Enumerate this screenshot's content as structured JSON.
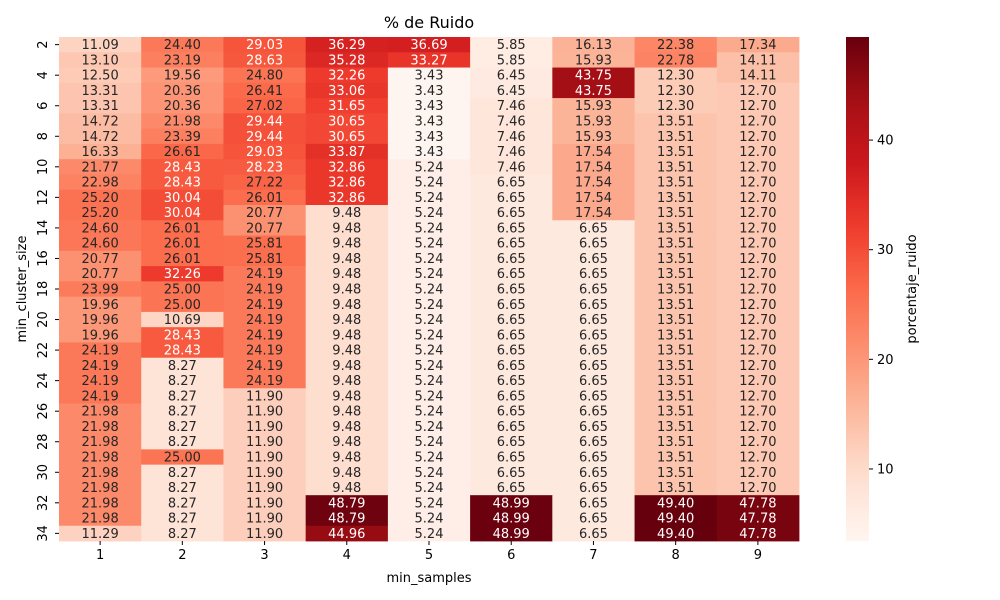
{
  "chart_data": {
    "type": "heatmap",
    "title": "% de Ruido",
    "xlabel": "min_samples",
    "ylabel": "min_cluster_size",
    "colorbar_label": "porcentaje_ruido",
    "colormap": "Reds",
    "color_range": [
      3.43,
      49.4
    ],
    "colorbar_ticks": [
      10,
      20,
      30,
      40
    ],
    "x": [
      1,
      2,
      3,
      4,
      5,
      6,
      7,
      8,
      9
    ],
    "y": [
      2,
      3,
      4,
      5,
      6,
      7,
      8,
      9,
      10,
      11,
      12,
      13,
      14,
      15,
      16,
      17,
      18,
      19,
      20,
      21,
      22,
      23,
      24,
      25,
      26,
      27,
      28,
      29,
      30,
      31,
      32,
      33,
      34
    ],
    "y_tick_labels": [
      2,
      4,
      6,
      8,
      10,
      12,
      14,
      16,
      18,
      20,
      22,
      24,
      26,
      28,
      30,
      32,
      34
    ],
    "values": [
      [
        11.09,
        24.4,
        29.03,
        36.29,
        36.69,
        5.85,
        16.13,
        22.38,
        17.34
      ],
      [
        13.1,
        23.19,
        28.63,
        35.28,
        33.27,
        5.85,
        15.93,
        22.78,
        14.11
      ],
      [
        12.5,
        19.56,
        24.8,
        32.26,
        3.43,
        6.45,
        43.75,
        12.3,
        14.11
      ],
      [
        13.31,
        20.36,
        26.41,
        33.06,
        3.43,
        6.45,
        43.75,
        12.3,
        12.7
      ],
      [
        13.31,
        20.36,
        27.02,
        31.65,
        3.43,
        7.46,
        15.93,
        12.3,
        12.7
      ],
      [
        14.72,
        21.98,
        29.44,
        30.65,
        3.43,
        7.46,
        15.93,
        13.51,
        12.7
      ],
      [
        14.72,
        23.39,
        29.44,
        30.65,
        3.43,
        7.46,
        15.93,
        13.51,
        12.7
      ],
      [
        16.33,
        26.61,
        29.03,
        33.87,
        3.43,
        7.46,
        17.54,
        13.51,
        12.7
      ],
      [
        21.77,
        28.43,
        28.23,
        32.86,
        5.24,
        7.46,
        17.54,
        13.51,
        12.7
      ],
      [
        22.98,
        28.43,
        27.22,
        32.86,
        5.24,
        6.65,
        17.54,
        13.51,
        12.7
      ],
      [
        25.2,
        30.04,
        26.01,
        32.86,
        5.24,
        6.65,
        17.54,
        13.51,
        12.7
      ],
      [
        25.2,
        30.04,
        20.77,
        9.48,
        5.24,
        6.65,
        17.54,
        13.51,
        12.7
      ],
      [
        24.6,
        26.01,
        20.77,
        9.48,
        5.24,
        6.65,
        6.65,
        13.51,
        12.7
      ],
      [
        24.6,
        26.01,
        25.81,
        9.48,
        5.24,
        6.65,
        6.65,
        13.51,
        12.7
      ],
      [
        20.77,
        26.01,
        25.81,
        9.48,
        5.24,
        6.65,
        6.65,
        13.51,
        12.7
      ],
      [
        20.77,
        32.26,
        24.19,
        9.48,
        5.24,
        6.65,
        6.65,
        13.51,
        12.7
      ],
      [
        23.99,
        25.0,
        24.19,
        9.48,
        5.24,
        6.65,
        6.65,
        13.51,
        12.7
      ],
      [
        19.96,
        25.0,
        24.19,
        9.48,
        5.24,
        6.65,
        6.65,
        13.51,
        12.7
      ],
      [
        19.96,
        10.69,
        24.19,
        9.48,
        5.24,
        6.65,
        6.65,
        13.51,
        12.7
      ],
      [
        19.96,
        28.43,
        24.19,
        9.48,
        5.24,
        6.65,
        6.65,
        13.51,
        12.7
      ],
      [
        24.19,
        28.43,
        24.19,
        9.48,
        5.24,
        6.65,
        6.65,
        13.51,
        12.7
      ],
      [
        24.19,
        8.27,
        24.19,
        9.48,
        5.24,
        6.65,
        6.65,
        13.51,
        12.7
      ],
      [
        24.19,
        8.27,
        24.19,
        9.48,
        5.24,
        6.65,
        6.65,
        13.51,
        12.7
      ],
      [
        24.19,
        8.27,
        11.9,
        9.48,
        5.24,
        6.65,
        6.65,
        13.51,
        12.7
      ],
      [
        21.98,
        8.27,
        11.9,
        9.48,
        5.24,
        6.65,
        6.65,
        13.51,
        12.7
      ],
      [
        21.98,
        8.27,
        11.9,
        9.48,
        5.24,
        6.65,
        6.65,
        13.51,
        12.7
      ],
      [
        21.98,
        8.27,
        11.9,
        9.48,
        5.24,
        6.65,
        6.65,
        13.51,
        12.7
      ],
      [
        21.98,
        25.0,
        11.9,
        9.48,
        5.24,
        6.65,
        6.65,
        13.51,
        12.7
      ],
      [
        21.98,
        8.27,
        11.9,
        9.48,
        5.24,
        6.65,
        6.65,
        13.51,
        12.7
      ],
      [
        21.98,
        8.27,
        11.9,
        9.48,
        5.24,
        6.65,
        6.65,
        13.51,
        12.7
      ],
      [
        21.98,
        8.27,
        11.9,
        48.79,
        5.24,
        48.99,
        6.65,
        49.4,
        47.78
      ],
      [
        21.98,
        8.27,
        11.9,
        48.79,
        5.24,
        48.99,
        6.65,
        49.4,
        47.78
      ],
      [
        11.29,
        8.27,
        11.9,
        44.96,
        5.24,
        48.99,
        6.65,
        49.4,
        47.78
      ]
    ],
    "grid": false,
    "legend": "colorbar-right"
  }
}
